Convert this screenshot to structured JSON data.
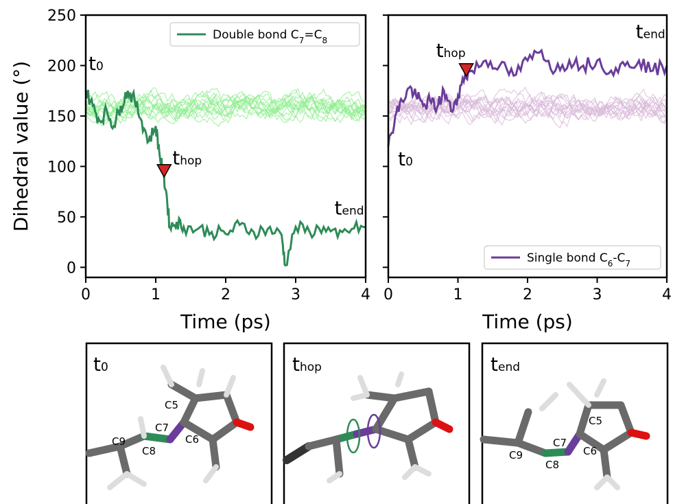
{
  "chart_data": [
    {
      "type": "line",
      "xlabel": "Time (ps)",
      "ylabel": "Dihedral value (°)",
      "xlim": [
        0,
        4
      ],
      "ylim": [
        -10,
        250
      ],
      "xticks": [
        "0",
        "1",
        "2",
        "3",
        "4"
      ],
      "yticks": [
        "0",
        "50",
        "100",
        "150",
        "200",
        "250"
      ],
      "legend": {
        "placement": "top-right",
        "label": "Double bond C",
        "sub1": "7",
        "sep": "=C",
        "sub2": "8"
      },
      "legend_color": "#2e8b57",
      "ensemble_color": "#90ee90",
      "ensemble_band": {
        "mean": 160,
        "spread": 18
      },
      "main_series": {
        "x": [
          0,
          0.1,
          0.2,
          0.3,
          0.4,
          0.5,
          0.6,
          0.7,
          0.8,
          0.9,
          1.0,
          1.05,
          1.1,
          1.15,
          1.2,
          1.3,
          1.4,
          1.6,
          1.8,
          2.0,
          2.2,
          2.4,
          2.6,
          2.8,
          2.85,
          3.0,
          3.2,
          3.4,
          3.6,
          3.8,
          4.0
        ],
        "values": [
          175,
          160,
          145,
          155,
          140,
          160,
          175,
          165,
          145,
          125,
          140,
          115,
          95,
          75,
          40,
          45,
          40,
          38,
          35,
          33,
          42,
          35,
          38,
          32,
          2,
          40,
          35,
          40,
          30,
          38,
          40
        ]
      },
      "markers": [
        {
          "label": "t",
          "sub": "0",
          "x": 0.0,
          "y": 175
        },
        {
          "label": "t",
          "sub": "hop",
          "x": 1.12,
          "y": 95
        },
        {
          "label": "t",
          "sub": "end",
          "x": 3.75,
          "y": 55
        }
      ]
    },
    {
      "type": "line",
      "xlabel": "Time (ps)",
      "ylabel": "",
      "xlim": [
        0,
        4
      ],
      "ylim": [
        -10,
        250
      ],
      "xticks": [
        "0",
        "1",
        "2",
        "3",
        "4"
      ],
      "yticks": [],
      "legend": {
        "placement": "bottom-right",
        "label": "Single bond C",
        "sub1": "6",
        "sep": "-C",
        "sub2": "7"
      },
      "legend_color": "#6a3d9a",
      "ensemble_color": "#d8b8d8",
      "ensemble_band": {
        "mean": 158,
        "spread": 20
      },
      "main_series": {
        "x": [
          0,
          0.1,
          0.2,
          0.3,
          0.4,
          0.5,
          0.6,
          0.7,
          0.8,
          0.9,
          1.0,
          1.1,
          1.2,
          1.4,
          1.6,
          1.8,
          2.0,
          2.2,
          2.4,
          2.6,
          2.8,
          3.0,
          3.2,
          3.4,
          3.6,
          3.8,
          4.0
        ],
        "values": [
          120,
          150,
          165,
          178,
          170,
          160,
          165,
          158,
          175,
          155,
          170,
          190,
          195,
          205,
          200,
          190,
          205,
          215,
          195,
          205,
          200,
          205,
          195,
          200,
          205,
          195,
          200
        ]
      },
      "markers": [
        {
          "label": "t",
          "sub": "0",
          "x": 0.1,
          "y": 118
        },
        {
          "label": "t",
          "sub": "hop",
          "x": 1.12,
          "y": 195
        },
        {
          "label": "t",
          "sub": "end",
          "x": 3.75,
          "y": 230
        }
      ]
    }
  ],
  "molecule_panels": [
    {
      "label": "t",
      "sub": "0",
      "atoms": [
        "C5",
        "C7",
        "C6",
        "C9",
        "C8"
      ]
    },
    {
      "label": "t",
      "sub": "hop",
      "atoms": []
    },
    {
      "label": "t",
      "sub": "end",
      "atoms": [
        "C5",
        "C7",
        "C6",
        "C9",
        "C8"
      ]
    }
  ],
  "colors": {
    "hop_marker": "#d62728",
    "double_bond": "#2e8b57",
    "single_bond": "#6a3d9a"
  }
}
